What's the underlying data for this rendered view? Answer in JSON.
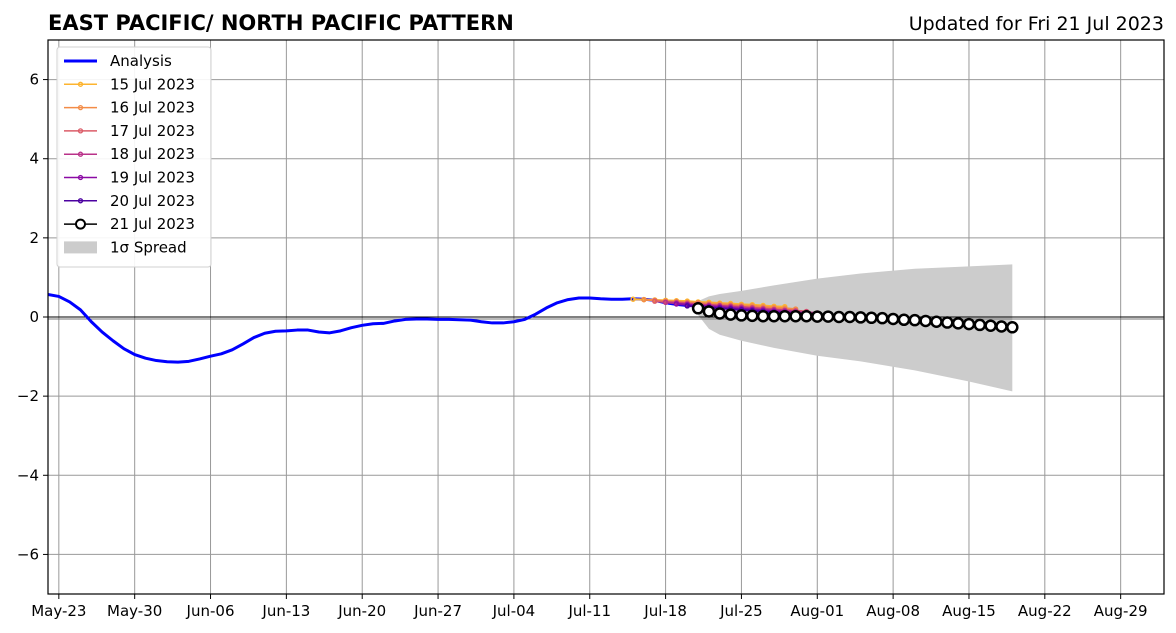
{
  "header": {
    "title": "EAST PACIFIC/ NORTH PACIFIC PATTERN",
    "updated": "Updated for Fri 21 Jul 2023"
  },
  "colors": {
    "analysis": "#0000ff",
    "spread": "#cccccc",
    "grid": "#999999",
    "forecast_21": "#000000"
  },
  "chart_data": {
    "type": "line",
    "title": "EAST PACIFIC/ NORTH PACIFIC PATTERN",
    "subtitle": "Updated for Fri 21 Jul 2023",
    "xlabel": "",
    "ylabel": "",
    "x_range": [
      "2023-05-22",
      "2023-09-02"
    ],
    "ylim": [
      -7,
      7
    ],
    "grid": true,
    "legend_position": "top-left",
    "x_ticks": [
      "2023-05-23",
      "2023-05-30",
      "2023-06-06",
      "2023-06-13",
      "2023-06-20",
      "2023-06-27",
      "2023-07-04",
      "2023-07-11",
      "2023-07-18",
      "2023-07-25",
      "2023-08-01",
      "2023-08-08",
      "2023-08-15",
      "2023-08-22",
      "2023-08-29"
    ],
    "x_tick_labels": [
      "May-23",
      "May-30",
      "Jun-06",
      "Jun-13",
      "Jun-20",
      "Jun-27",
      "Jul-04",
      "Jul-11",
      "Jul-18",
      "Jul-25",
      "Aug-01",
      "Aug-08",
      "Aug-15",
      "Aug-22",
      "Aug-29"
    ],
    "y_ticks": [
      -6,
      -4,
      -2,
      0,
      2,
      4,
      6
    ],
    "y_tick_labels": [
      "−6",
      "−4",
      "−2",
      "0",
      "2",
      "4",
      "6"
    ],
    "analysis": {
      "name": "Analysis",
      "x": [
        "2023-05-22",
        "2023-05-23",
        "2023-05-24",
        "2023-05-25",
        "2023-05-26",
        "2023-05-27",
        "2023-05-28",
        "2023-05-29",
        "2023-05-30",
        "2023-05-31",
        "2023-06-01",
        "2023-06-02",
        "2023-06-03",
        "2023-06-04",
        "2023-06-05",
        "2023-06-06",
        "2023-06-07",
        "2023-06-08",
        "2023-06-09",
        "2023-06-10",
        "2023-06-11",
        "2023-06-12",
        "2023-06-13",
        "2023-06-14",
        "2023-06-15",
        "2023-06-16",
        "2023-06-17",
        "2023-06-18",
        "2023-06-19",
        "2023-06-20",
        "2023-06-21",
        "2023-06-22",
        "2023-06-23",
        "2023-06-24",
        "2023-06-25",
        "2023-06-26",
        "2023-06-27",
        "2023-06-28",
        "2023-06-29",
        "2023-06-30",
        "2023-07-01",
        "2023-07-02",
        "2023-07-03",
        "2023-07-04",
        "2023-07-05",
        "2023-07-06",
        "2023-07-07",
        "2023-07-08",
        "2023-07-09",
        "2023-07-10",
        "2023-07-11",
        "2023-07-12",
        "2023-07-13",
        "2023-07-14",
        "2023-07-15",
        "2023-07-16",
        "2023-07-17",
        "2023-07-18",
        "2023-07-19",
        "2023-07-20"
      ],
      "y": [
        0.57,
        0.52,
        0.38,
        0.18,
        -0.12,
        -0.38,
        -0.6,
        -0.8,
        -0.95,
        -1.04,
        -1.1,
        -1.13,
        -1.14,
        -1.12,
        -1.06,
        -0.99,
        -0.93,
        -0.83,
        -0.68,
        -0.52,
        -0.41,
        -0.36,
        -0.35,
        -0.33,
        -0.33,
        -0.38,
        -0.4,
        -0.35,
        -0.27,
        -0.21,
        -0.17,
        -0.16,
        -0.1,
        -0.06,
        -0.05,
        -0.05,
        -0.06,
        -0.06,
        -0.07,
        -0.08,
        -0.12,
        -0.15,
        -0.15,
        -0.12,
        -0.06,
        0.07,
        0.23,
        0.36,
        0.44,
        0.48,
        0.48,
        0.46,
        0.45,
        0.45,
        0.46,
        0.45,
        0.42,
        0.36,
        0.32,
        0.29
      ]
    },
    "forecasts": [
      {
        "name": "15 Jul 2023",
        "color": "#fdb42f",
        "marker": "small",
        "x": [
          "2023-07-15",
          "2023-07-16",
          "2023-07-17",
          "2023-07-18",
          "2023-07-19",
          "2023-07-20",
          "2023-07-21",
          "2023-07-22",
          "2023-07-23",
          "2023-07-24",
          "2023-07-25",
          "2023-07-26",
          "2023-07-27",
          "2023-07-28",
          "2023-07-29"
        ],
        "y": [
          0.45,
          0.44,
          0.43,
          0.42,
          0.41,
          0.4,
          0.38,
          0.37,
          0.35,
          0.34,
          0.32,
          0.31,
          0.29,
          0.27,
          0.26
        ]
      },
      {
        "name": "16 Jul 2023",
        "color": "#f38c47",
        "marker": "small",
        "x": [
          "2023-07-16",
          "2023-07-17",
          "2023-07-18",
          "2023-07-19",
          "2023-07-20",
          "2023-07-21",
          "2023-07-22",
          "2023-07-23",
          "2023-07-24",
          "2023-07-25",
          "2023-07-26",
          "2023-07-27",
          "2023-07-28",
          "2023-07-29",
          "2023-07-30"
        ],
        "y": [
          0.44,
          0.42,
          0.4,
          0.39,
          0.37,
          0.36,
          0.34,
          0.33,
          0.31,
          0.29,
          0.28,
          0.26,
          0.24,
          0.22,
          0.2
        ]
      },
      {
        "name": "17 Jul 2023",
        "color": "#db5c68",
        "marker": "small",
        "x": [
          "2023-07-17",
          "2023-07-18",
          "2023-07-19",
          "2023-07-20",
          "2023-07-21",
          "2023-07-22",
          "2023-07-23",
          "2023-07-24",
          "2023-07-25",
          "2023-07-26",
          "2023-07-27",
          "2023-07-28",
          "2023-07-29",
          "2023-07-30",
          "2023-07-31"
        ],
        "y": [
          0.4,
          0.38,
          0.37,
          0.35,
          0.33,
          0.31,
          0.29,
          0.28,
          0.26,
          0.24,
          0.22,
          0.2,
          0.18,
          0.16,
          0.14
        ]
      },
      {
        "name": "18 Jul 2023",
        "color": "#b93289",
        "marker": "small",
        "x": [
          "2023-07-18",
          "2023-07-19",
          "2023-07-20",
          "2023-07-21",
          "2023-07-22",
          "2023-07-23",
          "2023-07-24",
          "2023-07-25",
          "2023-07-26",
          "2023-07-27",
          "2023-07-28",
          "2023-07-29",
          "2023-07-30",
          "2023-07-31",
          "2023-08-01"
        ],
        "y": [
          0.37,
          0.35,
          0.33,
          0.31,
          0.29,
          0.28,
          0.26,
          0.24,
          0.22,
          0.2,
          0.18,
          0.16,
          0.14,
          0.12,
          0.1
        ]
      },
      {
        "name": "19 Jul 2023",
        "color": "#8b0aa5",
        "marker": "small",
        "x": [
          "2023-07-19",
          "2023-07-20",
          "2023-07-21",
          "2023-07-22",
          "2023-07-23",
          "2023-07-24",
          "2023-07-25",
          "2023-07-26",
          "2023-07-27",
          "2023-07-28",
          "2023-07-29",
          "2023-07-30",
          "2023-07-31",
          "2023-08-01",
          "2023-08-02"
        ],
        "y": [
          0.33,
          0.31,
          0.29,
          0.27,
          0.25,
          0.23,
          0.21,
          0.19,
          0.17,
          0.15,
          0.13,
          0.11,
          0.09,
          0.07,
          0.05
        ]
      },
      {
        "name": "20 Jul 2023",
        "color": "#4c02a1",
        "marker": "small",
        "x": [
          "2023-07-20",
          "2023-07-21",
          "2023-07-22",
          "2023-07-23",
          "2023-07-24",
          "2023-07-25",
          "2023-07-26",
          "2023-07-27",
          "2023-07-28",
          "2023-07-29",
          "2023-07-30",
          "2023-07-31",
          "2023-08-01",
          "2023-08-02",
          "2023-08-03"
        ],
        "y": [
          0.28,
          0.26,
          0.24,
          0.22,
          0.2,
          0.18,
          0.16,
          0.14,
          0.12,
          0.1,
          0.08,
          0.06,
          0.05,
          0.04,
          0.03
        ]
      },
      {
        "name": "21 Jul 2023",
        "color": "#000000",
        "marker": "large",
        "x": [
          "2023-07-21",
          "2023-07-22",
          "2023-07-23",
          "2023-07-24",
          "2023-07-25",
          "2023-07-26",
          "2023-07-27",
          "2023-07-28",
          "2023-07-29",
          "2023-07-30",
          "2023-07-31",
          "2023-08-01",
          "2023-08-02",
          "2023-08-03",
          "2023-08-04",
          "2023-08-05",
          "2023-08-06",
          "2023-08-07",
          "2023-08-08",
          "2023-08-09",
          "2023-08-10",
          "2023-08-11",
          "2023-08-12",
          "2023-08-13",
          "2023-08-14",
          "2023-08-15",
          "2023-08-16",
          "2023-08-17",
          "2023-08-18",
          "2023-08-19"
        ],
        "y": [
          0.22,
          0.14,
          0.09,
          0.06,
          0.04,
          0.03,
          0.02,
          0.02,
          0.02,
          0.02,
          0.02,
          0.01,
          0.01,
          0.0,
          0.0,
          -0.01,
          -0.02,
          -0.03,
          -0.05,
          -0.07,
          -0.08,
          -0.1,
          -0.12,
          -0.14,
          -0.16,
          -0.18,
          -0.2,
          -0.22,
          -0.24,
          -0.26
        ]
      }
    ],
    "spread": {
      "name": "1σ Spread",
      "x": [
        "2023-07-21",
        "2023-07-22",
        "2023-07-23",
        "2023-07-25",
        "2023-07-28",
        "2023-08-01",
        "2023-08-05",
        "2023-08-10",
        "2023-08-15",
        "2023-08-19"
      ],
      "upper": [
        0.4,
        0.52,
        0.58,
        0.66,
        0.8,
        0.97,
        1.1,
        1.22,
        1.28,
        1.33
      ],
      "lower": [
        0.05,
        -0.3,
        -0.45,
        -0.6,
        -0.78,
        -0.98,
        -1.12,
        -1.35,
        -1.63,
        -1.88
      ]
    },
    "legend": [
      {
        "label": "Analysis",
        "kind": "line"
      },
      {
        "label": "15 Jul 2023",
        "kind": "marker-line"
      },
      {
        "label": "16 Jul 2023",
        "kind": "marker-line"
      },
      {
        "label": "17 Jul 2023",
        "kind": "marker-line"
      },
      {
        "label": "18 Jul 2023",
        "kind": "marker-line"
      },
      {
        "label": "19 Jul 2023",
        "kind": "marker-line"
      },
      {
        "label": "20 Jul 2023",
        "kind": "marker-line"
      },
      {
        "label": "21 Jul 2023",
        "kind": "big-marker-line"
      },
      {
        "label": "1σ Spread",
        "kind": "patch"
      }
    ]
  }
}
